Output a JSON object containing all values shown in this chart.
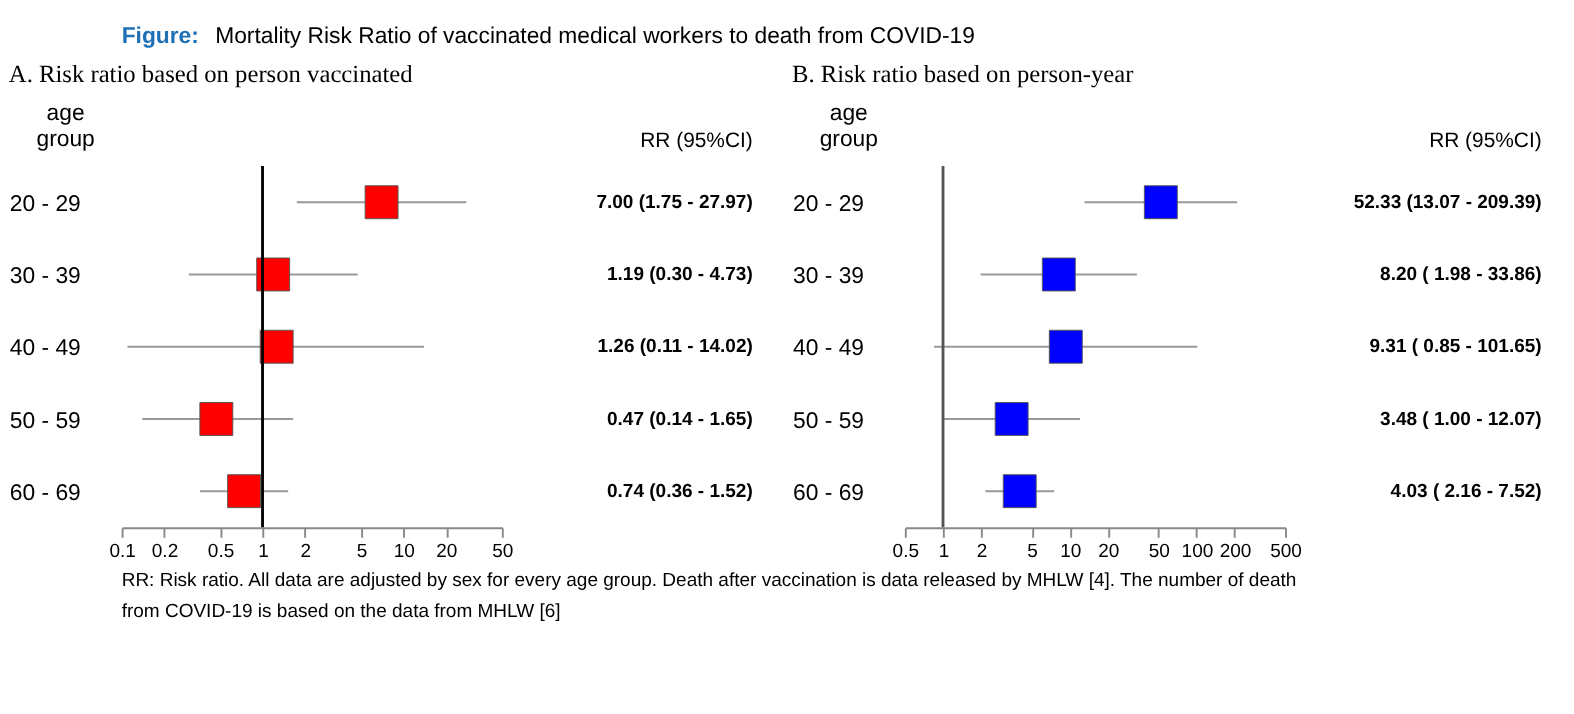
{
  "chart_data": [
    {
      "type": "scatter",
      "orientation": "horizontal",
      "title": "A. Risk ratio based on person vaccinated",
      "ylabel": "age group",
      "categories": [
        "20 - 29",
        "30 - 39",
        "40 - 49",
        "50 - 59",
        "60 - 69"
      ],
      "series": [
        {
          "color": "#ff0000",
          "values": [
            7.0,
            1.19,
            1.26,
            0.47,
            0.74
          ],
          "errors": [
            [
              1.75,
              27.97
            ],
            [
              0.3,
              4.73
            ],
            [
              0.11,
              14.02
            ],
            [
              0.14,
              1.65
            ],
            [
              0.36,
              1.52
            ]
          ],
          "value_labels": [
            "7.00 (1.75 - 27.97)",
            "1.19 (0.30 -   4.73)",
            "1.26 (0.11 - 14.02)",
            "0.47 (0.14 -   1.65)",
            "0.74 (0.36 -   1.52)"
          ]
        }
      ],
      "xlim": [
        0.1,
        50
      ],
      "xticks": [
        0.1,
        0.2,
        0.5,
        1,
        2,
        5,
        10,
        20,
        50
      ],
      "log": "x",
      "marker": "square",
      "grid": false,
      "ref_lines": [
        {
          "axis": "x",
          "value": 1,
          "color": "#000000"
        }
      ],
      "annotations": [
        "RR    (95%CI)",
        "Figure: Mortality Risk Ratio of vaccinated medical workers to death from COVID-19",
        "RR: Risk ratio. All data are adjusted by sex for every age group. Death after vaccination is data released by MHLW [4]. The number of death from COVID-19 is based on the data from MHLW [6]"
      ]
    },
    {
      "type": "scatter",
      "orientation": "horizontal",
      "title": "B. Risk ratio based on person-year",
      "ylabel": "age group",
      "categories": [
        "20 - 29",
        "30 - 39",
        "40 - 49",
        "50 - 59",
        "60 - 69"
      ],
      "series": [
        {
          "color": "#0000ff",
          "values": [
            52.33,
            8.2,
            9.31,
            3.48,
            4.03
          ],
          "errors": [
            [
              13.07,
              209.39
            ],
            [
              1.98,
              33.86
            ],
            [
              0.85,
              101.65
            ],
            [
              1.0,
              12.07
            ],
            [
              2.16,
              7.52
            ]
          ],
          "value_labels": [
            "52.33 (13.07 - 209.39)",
            "8.20 (  1.98 -    33.86)",
            "9.31 (  0.85 - 101.65)",
            "3.48 (   1.00 -  12.07)",
            "4.03 (   2.16 -    7.52)"
          ]
        }
      ],
      "xlim": [
        0.5,
        500
      ],
      "xticks": [
        0.5,
        1,
        2,
        5,
        10,
        20,
        50,
        100,
        200,
        500
      ],
      "log": "x",
      "marker": "square",
      "grid": false,
      "ref_lines": [
        {
          "axis": "x",
          "value": 1,
          "color": "#555555"
        }
      ],
      "annotations": [
        "RR      (95%CI)"
      ]
    }
  ]
}
